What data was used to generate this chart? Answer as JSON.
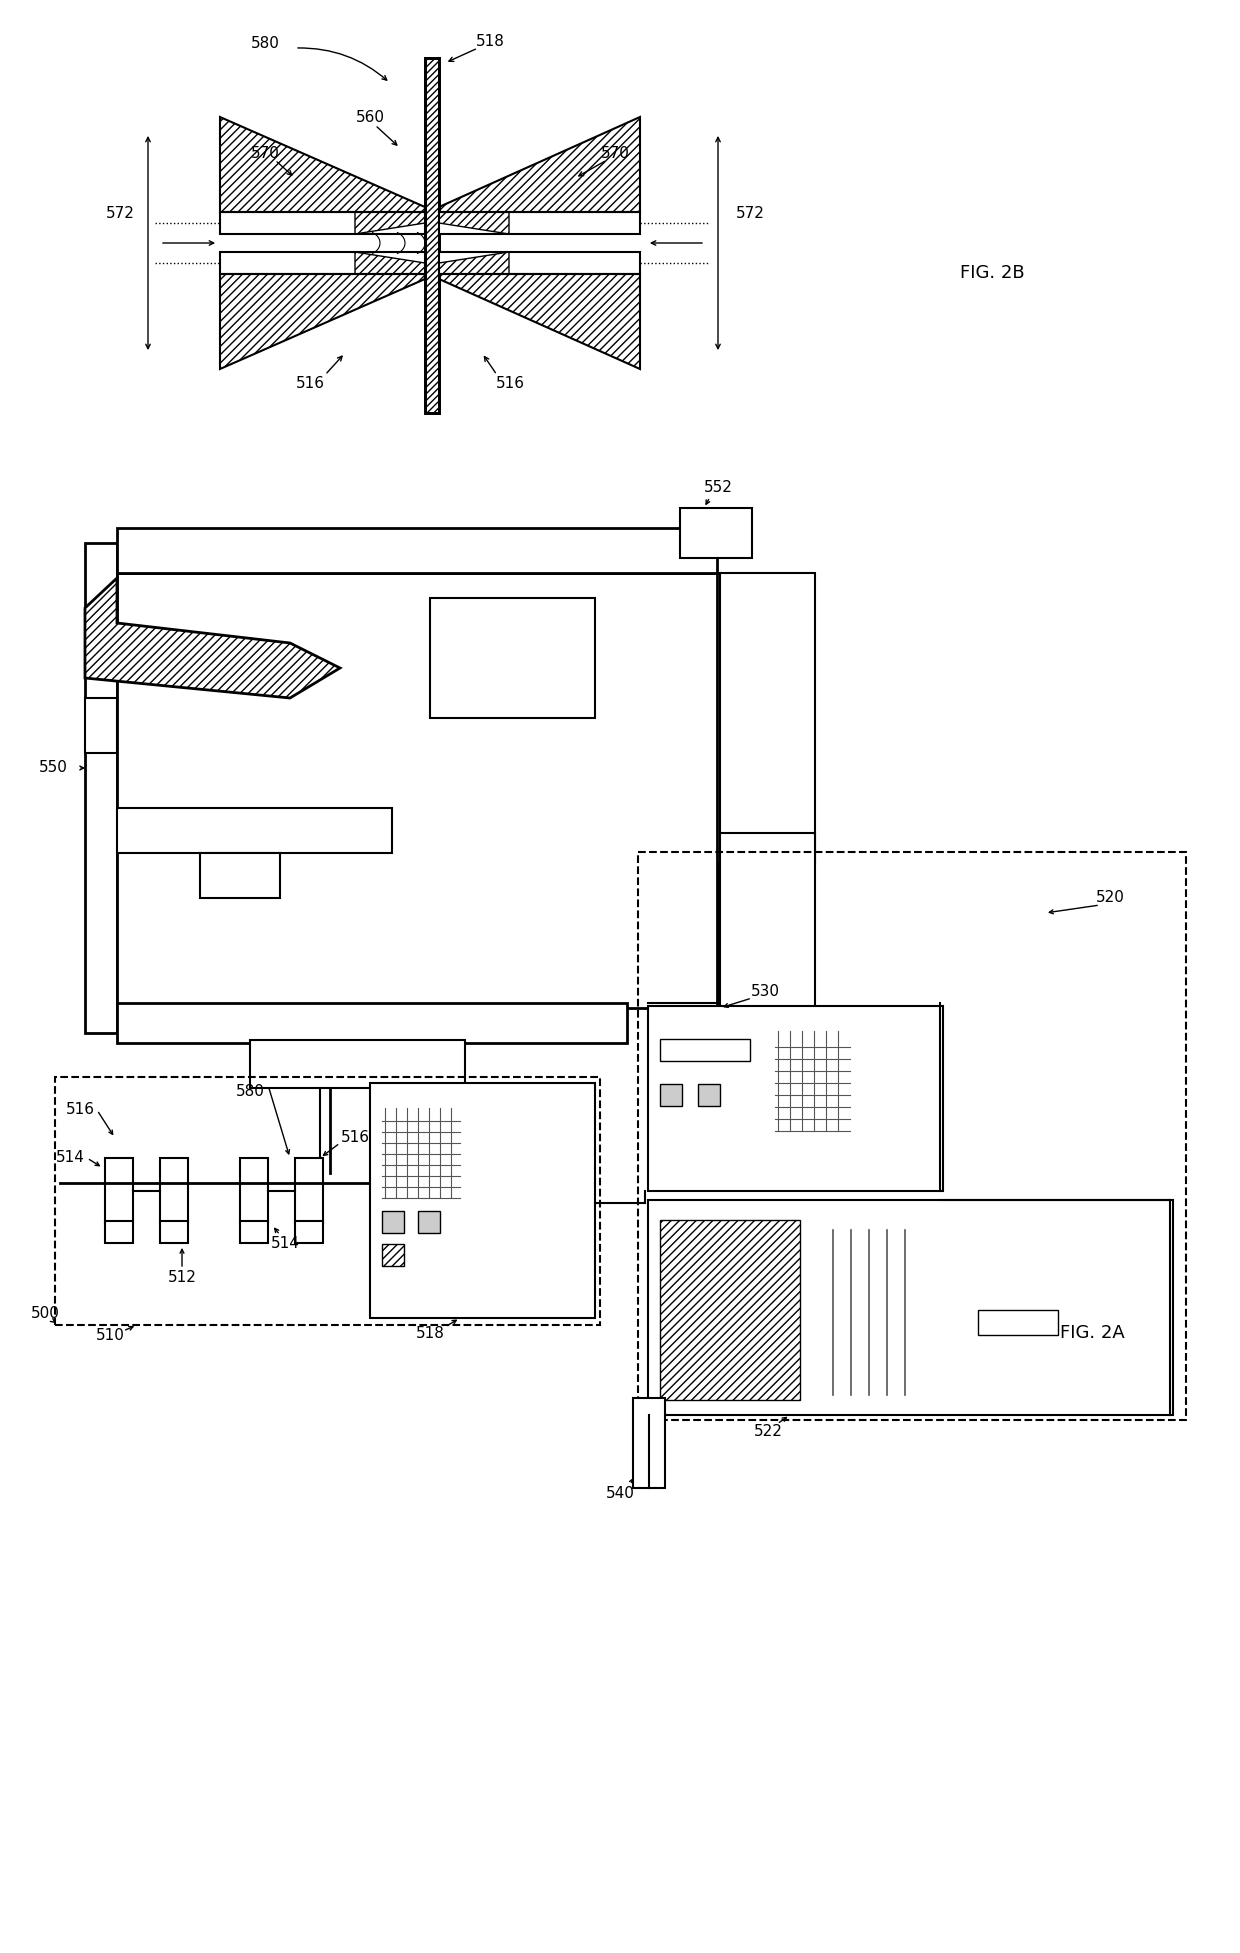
{
  "fig_width": 12.4,
  "fig_height": 19.53,
  "bg_color": "#ffffff",
  "line_color": "#000000",
  "fs": 11,
  "fs_fig": 13
}
